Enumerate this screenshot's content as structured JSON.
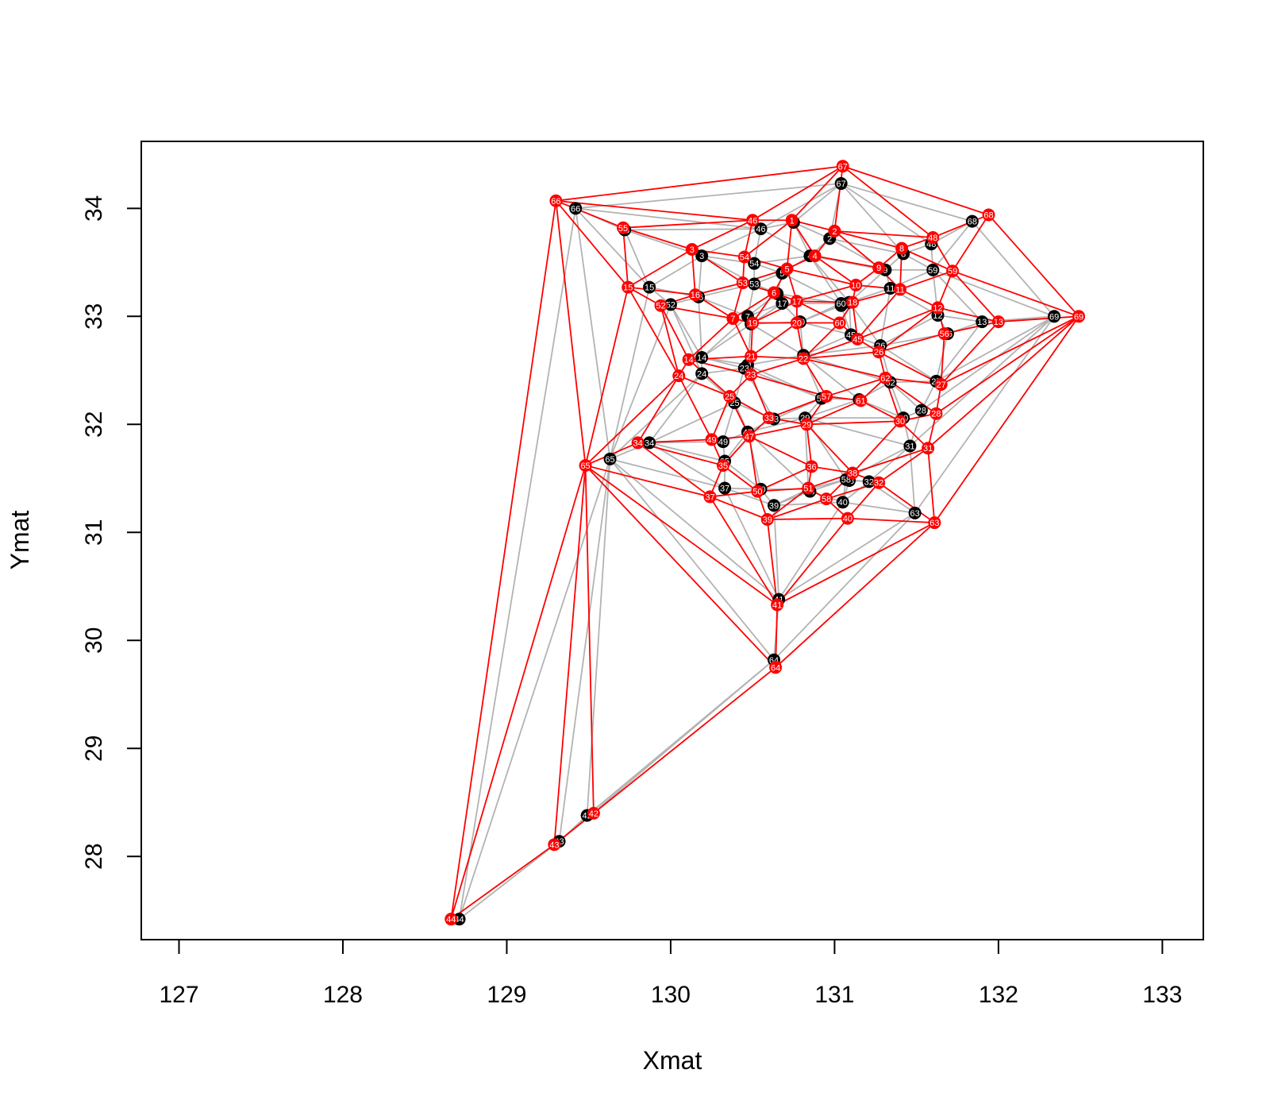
{
  "chart_data": {
    "type": "scatter",
    "xlabel": "Xmat",
    "ylabel": "Ymat",
    "xlim": [
      126.77,
      133.25
    ],
    "ylim": [
      27.23,
      34.62
    ],
    "xticks": [
      127,
      128,
      129,
      130,
      131,
      132,
      133
    ],
    "yticks": [
      28,
      29,
      30,
      31,
      32,
      33,
      34
    ],
    "grid": false,
    "colors": {
      "black_network": "#b3b3b3",
      "red_network": "#ff0000",
      "black_points": "#000000",
      "red_points": "#ff0000"
    },
    "black_points": [
      {
        "id": "1",
        "x": 130.75,
        "y": 33.87
      },
      {
        "id": "2",
        "x": 130.97,
        "y": 33.72
      },
      {
        "id": "3",
        "x": 130.19,
        "y": 33.56
      },
      {
        "id": "4",
        "x": 130.85,
        "y": 33.56
      },
      {
        "id": "5",
        "x": 130.68,
        "y": 33.4
      },
      {
        "id": "6",
        "x": 130.65,
        "y": 33.21
      },
      {
        "id": "7",
        "x": 130.47,
        "y": 33.0
      },
      {
        "id": "8",
        "x": 131.42,
        "y": 33.58
      },
      {
        "id": "9",
        "x": 131.31,
        "y": 33.43
      },
      {
        "id": "10",
        "x": 131.09,
        "y": 33.13
      },
      {
        "id": "11",
        "x": 131.34,
        "y": 33.26
      },
      {
        "id": "12",
        "x": 131.63,
        "y": 33.01
      },
      {
        "id": "13",
        "x": 131.9,
        "y": 32.95
      },
      {
        "id": "14",
        "x": 130.19,
        "y": 32.62
      },
      {
        "id": "15",
        "x": 129.87,
        "y": 33.27
      },
      {
        "id": "16",
        "x": 130.17,
        "y": 33.18
      },
      {
        "id": "17",
        "x": 130.68,
        "y": 33.12
      },
      {
        "id": "18",
        "x": 131.04,
        "y": 33.1
      },
      {
        "id": "19",
        "x": 130.49,
        "y": 32.93
      },
      {
        "id": "20",
        "x": 130.79,
        "y": 32.95
      },
      {
        "id": "21",
        "x": 130.47,
        "y": 32.55
      },
      {
        "id": "22",
        "x": 130.81,
        "y": 32.64
      },
      {
        "id": "23",
        "x": 130.45,
        "y": 32.52
      },
      {
        "id": "24",
        "x": 130.19,
        "y": 32.47
      },
      {
        "id": "25",
        "x": 130.39,
        "y": 32.2
      },
      {
        "id": "26",
        "x": 131.28,
        "y": 32.73
      },
      {
        "id": "27",
        "x": 131.62,
        "y": 32.4
      },
      {
        "id": "28",
        "x": 131.53,
        "y": 32.13
      },
      {
        "id": "29",
        "x": 130.82,
        "y": 32.06
      },
      {
        "id": "30",
        "x": 131.42,
        "y": 32.06
      },
      {
        "id": "31",
        "x": 131.46,
        "y": 31.8
      },
      {
        "id": "32",
        "x": 131.21,
        "y": 31.47
      },
      {
        "id": "33",
        "x": 130.63,
        "y": 32.05
      },
      {
        "id": "34",
        "x": 129.87,
        "y": 31.83
      },
      {
        "id": "35",
        "x": 130.33,
        "y": 31.66
      },
      {
        "id": "36",
        "x": 130.85,
        "y": 31.38
      },
      {
        "id": "37",
        "x": 130.33,
        "y": 31.41
      },
      {
        "id": "38",
        "x": 131.09,
        "y": 31.48
      },
      {
        "id": "39",
        "x": 130.63,
        "y": 31.25
      },
      {
        "id": "40",
        "x": 131.05,
        "y": 31.28
      },
      {
        "id": "41",
        "x": 130.66,
        "y": 30.38
      },
      {
        "id": "42",
        "x": 129.49,
        "y": 28.38
      },
      {
        "id": "43",
        "x": 129.32,
        "y": 28.14
      },
      {
        "id": "44",
        "x": 128.71,
        "y": 27.42
      },
      {
        "id": "45",
        "x": 131.1,
        "y": 32.83
      },
      {
        "id": "46",
        "x": 130.55,
        "y": 33.81
      },
      {
        "id": "47",
        "x": 130.47,
        "y": 31.93
      },
      {
        "id": "48",
        "x": 131.59,
        "y": 33.67
      },
      {
        "id": "49",
        "x": 130.32,
        "y": 31.84
      },
      {
        "id": "50",
        "x": 130.55,
        "y": 31.4
      },
      {
        "id": "51",
        "x": 130.84,
        "y": 31.4
      },
      {
        "id": "52",
        "x": 130.0,
        "y": 33.11
      },
      {
        "id": "53",
        "x": 130.51,
        "y": 33.3
      },
      {
        "id": "54",
        "x": 130.51,
        "y": 33.49
      },
      {
        "id": "55",
        "x": 129.72,
        "y": 33.8
      },
      {
        "id": "56",
        "x": 131.69,
        "y": 32.84
      },
      {
        "id": "57",
        "x": 130.92,
        "y": 32.24
      },
      {
        "id": "58",
        "x": 131.07,
        "y": 31.49
      },
      {
        "id": "59",
        "x": 131.6,
        "y": 33.43
      },
      {
        "id": "60",
        "x": 131.04,
        "y": 33.12
      },
      {
        "id": "61",
        "x": 131.15,
        "y": 32.23
      },
      {
        "id": "62",
        "x": 131.34,
        "y": 32.39
      },
      {
        "id": "63",
        "x": 131.49,
        "y": 31.18
      },
      {
        "id": "64",
        "x": 130.63,
        "y": 29.82
      },
      {
        "id": "65",
        "x": 129.63,
        "y": 31.68
      },
      {
        "id": "66",
        "x": 129.42,
        "y": 34.0
      },
      {
        "id": "67",
        "x": 131.04,
        "y": 34.23
      },
      {
        "id": "68",
        "x": 131.84,
        "y": 33.88
      },
      {
        "id": "69",
        "x": 132.34,
        "y": 33.0
      }
    ],
    "red_points": [
      {
        "id": "1",
        "x": 130.74,
        "y": 33.89
      },
      {
        "id": "2",
        "x": 131.0,
        "y": 33.79
      },
      {
        "id": "3",
        "x": 130.13,
        "y": 33.62
      },
      {
        "id": "4",
        "x": 130.88,
        "y": 33.56
      },
      {
        "id": "5",
        "x": 130.71,
        "y": 33.44
      },
      {
        "id": "6",
        "x": 130.63,
        "y": 33.22
      },
      {
        "id": "7",
        "x": 130.38,
        "y": 32.98
      },
      {
        "id": "8",
        "x": 131.41,
        "y": 33.63
      },
      {
        "id": "9",
        "x": 131.27,
        "y": 33.45
      },
      {
        "id": "10",
        "x": 131.13,
        "y": 33.29
      },
      {
        "id": "11",
        "x": 131.4,
        "y": 33.25
      },
      {
        "id": "12",
        "x": 131.63,
        "y": 33.08
      },
      {
        "id": "13",
        "x": 132.0,
        "y": 32.95
      },
      {
        "id": "14",
        "x": 130.11,
        "y": 32.6
      },
      {
        "id": "15",
        "x": 129.74,
        "y": 33.27
      },
      {
        "id": "16",
        "x": 130.15,
        "y": 33.2
      },
      {
        "id": "17",
        "x": 130.77,
        "y": 33.14
      },
      {
        "id": "18",
        "x": 131.11,
        "y": 33.13
      },
      {
        "id": "19",
        "x": 130.5,
        "y": 32.94
      },
      {
        "id": "20",
        "x": 130.77,
        "y": 32.94
      },
      {
        "id": "21",
        "x": 130.49,
        "y": 32.63
      },
      {
        "id": "22",
        "x": 130.81,
        "y": 32.61
      },
      {
        "id": "23",
        "x": 130.49,
        "y": 32.46
      },
      {
        "id": "24",
        "x": 130.05,
        "y": 32.45
      },
      {
        "id": "25",
        "x": 130.36,
        "y": 32.26
      },
      {
        "id": "26",
        "x": 131.27,
        "y": 32.67
      },
      {
        "id": "27",
        "x": 131.65,
        "y": 32.37
      },
      {
        "id": "28",
        "x": 131.62,
        "y": 32.1
      },
      {
        "id": "29",
        "x": 130.83,
        "y": 32.0
      },
      {
        "id": "30",
        "x": 131.4,
        "y": 32.03
      },
      {
        "id": "31",
        "x": 131.57,
        "y": 31.78
      },
      {
        "id": "32",
        "x": 131.27,
        "y": 31.46
      },
      {
        "id": "33",
        "x": 130.6,
        "y": 32.06
      },
      {
        "id": "34",
        "x": 129.8,
        "y": 31.83
      },
      {
        "id": "35",
        "x": 130.32,
        "y": 31.62
      },
      {
        "id": "36",
        "x": 130.86,
        "y": 31.61
      },
      {
        "id": "37",
        "x": 130.24,
        "y": 31.33
      },
      {
        "id": "38",
        "x": 131.11,
        "y": 31.55
      },
      {
        "id": "39",
        "x": 130.59,
        "y": 31.12
      },
      {
        "id": "40",
        "x": 131.08,
        "y": 31.13
      },
      {
        "id": "41",
        "x": 130.65,
        "y": 30.33
      },
      {
        "id": "42",
        "x": 129.53,
        "y": 28.4
      },
      {
        "id": "43",
        "x": 129.29,
        "y": 28.11
      },
      {
        "id": "44",
        "x": 128.66,
        "y": 27.42
      },
      {
        "id": "45",
        "x": 131.14,
        "y": 32.79
      },
      {
        "id": "46",
        "x": 130.5,
        "y": 33.89
      },
      {
        "id": "47",
        "x": 130.48,
        "y": 31.89
      },
      {
        "id": "48",
        "x": 131.6,
        "y": 33.73
      },
      {
        "id": "49",
        "x": 130.25,
        "y": 31.86
      },
      {
        "id": "50",
        "x": 130.53,
        "y": 31.38
      },
      {
        "id": "51",
        "x": 130.84,
        "y": 31.41
      },
      {
        "id": "52",
        "x": 129.94,
        "y": 33.1
      },
      {
        "id": "53",
        "x": 130.44,
        "y": 33.31
      },
      {
        "id": "54",
        "x": 130.45,
        "y": 33.55
      },
      {
        "id": "55",
        "x": 129.71,
        "y": 33.82
      },
      {
        "id": "56",
        "x": 131.67,
        "y": 32.84
      },
      {
        "id": "57",
        "x": 130.95,
        "y": 32.26
      },
      {
        "id": "58",
        "x": 130.95,
        "y": 31.31
      },
      {
        "id": "59",
        "x": 131.72,
        "y": 33.42
      },
      {
        "id": "60",
        "x": 131.03,
        "y": 32.94
      },
      {
        "id": "61",
        "x": 131.16,
        "y": 32.22
      },
      {
        "id": "62",
        "x": 131.31,
        "y": 32.43
      },
      {
        "id": "63",
        "x": 131.61,
        "y": 31.09
      },
      {
        "id": "64",
        "x": 130.64,
        "y": 29.75
      },
      {
        "id": "65",
        "x": 129.48,
        "y": 31.62
      },
      {
        "id": "66",
        "x": 129.3,
        "y": 34.07
      },
      {
        "id": "67",
        "x": 131.05,
        "y": 34.39
      },
      {
        "id": "68",
        "x": 131.94,
        "y": 33.94
      },
      {
        "id": "69",
        "x": 132.49,
        "y": 33.0
      }
    ]
  }
}
